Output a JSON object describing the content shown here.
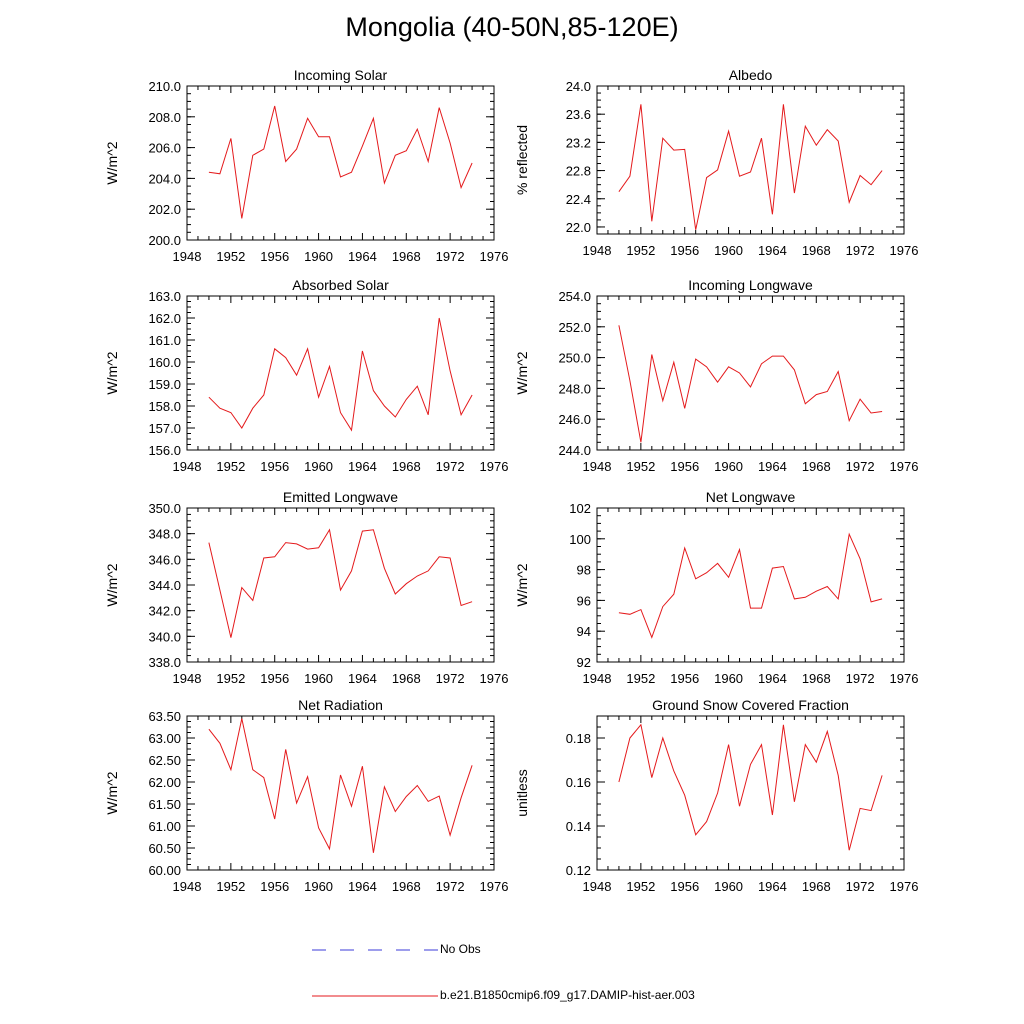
{
  "title": "Mongolia (40-50N,85-120E)",
  "colors": {
    "model_line": "#e41a1c",
    "obs_line": "#3b3bd9",
    "axis": "#000000"
  },
  "legend": {
    "items": [
      {
        "label": "No Obs",
        "style": "dashed",
        "color": "#3b3bd9"
      },
      {
        "label": "b.e21.B1850cmip6.f09_g17.DAMIP-hist-aer.003",
        "style": "solid",
        "color": "#e41a1c"
      }
    ]
  },
  "chart_data": [
    {
      "type": "line",
      "title": "Incoming Solar",
      "xlabel": "",
      "ylabel": "W/m^2",
      "xlim": [
        1948,
        1976
      ],
      "ylim": [
        200.0,
        210.0
      ],
      "xticks": [
        1948,
        1952,
        1956,
        1960,
        1964,
        1968,
        1972,
        1976
      ],
      "yticks": [
        200.0,
        202.0,
        204.0,
        206.0,
        208.0,
        210.0
      ],
      "ytick_decimals": 1,
      "grid": false,
      "series": [
        {
          "x": [
            1950,
            1951,
            1952,
            1953,
            1954,
            1955,
            1956,
            1957,
            1958,
            1959,
            1960,
            1961,
            1962,
            1963,
            1964,
            1965,
            1966,
            1967,
            1968,
            1969,
            1970,
            1971,
            1972,
            1973,
            1974
          ],
          "values": [
            204.4,
            204.3,
            206.6,
            201.4,
            205.5,
            205.9,
            208.7,
            205.1,
            205.9,
            207.9,
            206.7,
            206.7,
            204.1,
            204.4,
            206.1,
            207.9,
            203.7,
            205.5,
            205.8,
            207.2,
            205.1,
            208.6,
            206.3,
            203.4,
            205.0
          ]
        }
      ]
    },
    {
      "type": "line",
      "title": "Albedo",
      "xlabel": "",
      "ylabel": "% reflected",
      "xlim": [
        1948,
        1976
      ],
      "ylim": [
        21.9,
        24.0
      ],
      "xticks": [
        1948,
        1952,
        1956,
        1960,
        1964,
        1968,
        1972,
        1976
      ],
      "yticks": [
        22.0,
        22.4,
        22.8,
        23.2,
        23.6,
        24.0
      ],
      "ytick_decimals": 1,
      "grid": false,
      "series": [
        {
          "x": [
            1950,
            1951,
            1952,
            1953,
            1954,
            1955,
            1956,
            1957,
            1958,
            1959,
            1960,
            1961,
            1962,
            1963,
            1964,
            1965,
            1966,
            1967,
            1968,
            1969,
            1970,
            1971,
            1972,
            1973,
            1974
          ],
          "values": [
            22.5,
            22.72,
            23.74,
            22.08,
            23.26,
            23.09,
            23.1,
            21.96,
            22.7,
            22.81,
            23.36,
            22.72,
            22.78,
            23.26,
            22.18,
            23.74,
            22.48,
            23.43,
            23.16,
            23.38,
            23.22,
            22.35,
            22.73,
            22.6,
            22.8
          ]
        }
      ]
    },
    {
      "type": "line",
      "title": "Absorbed Solar",
      "xlabel": "",
      "ylabel": "W/m^2",
      "xlim": [
        1948,
        1976
      ],
      "ylim": [
        156.0,
        163.0
      ],
      "xticks": [
        1948,
        1952,
        1956,
        1960,
        1964,
        1968,
        1972,
        1976
      ],
      "yticks": [
        156.0,
        157.0,
        158.0,
        159.0,
        160.0,
        161.0,
        162.0,
        163.0
      ],
      "ytick_decimals": 1,
      "grid": false,
      "series": [
        {
          "x": [
            1950,
            1951,
            1952,
            1953,
            1954,
            1955,
            1956,
            1957,
            1958,
            1959,
            1960,
            1961,
            1962,
            1963,
            1964,
            1965,
            1966,
            1967,
            1968,
            1969,
            1970,
            1971,
            1972,
            1973,
            1974
          ],
          "values": [
            158.4,
            157.9,
            157.7,
            157.0,
            157.9,
            158.5,
            160.6,
            160.2,
            159.4,
            160.6,
            158.4,
            159.8,
            157.7,
            156.9,
            160.5,
            158.7,
            158.0,
            157.5,
            158.3,
            158.9,
            157.6,
            162.0,
            159.6,
            157.6,
            158.5
          ]
        }
      ]
    },
    {
      "type": "line",
      "title": "Incoming Longwave",
      "xlabel": "",
      "ylabel": "W/m^2",
      "xlim": [
        1948,
        1976
      ],
      "ylim": [
        244.0,
        254.0
      ],
      "xticks": [
        1948,
        1952,
        1956,
        1960,
        1964,
        1968,
        1972,
        1976
      ],
      "yticks": [
        244.0,
        246.0,
        248.0,
        250.0,
        252.0,
        254.0
      ],
      "ytick_decimals": 1,
      "grid": false,
      "series": [
        {
          "x": [
            1950,
            1951,
            1952,
            1953,
            1954,
            1955,
            1956,
            1957,
            1958,
            1959,
            1960,
            1961,
            1962,
            1963,
            1964,
            1965,
            1966,
            1967,
            1968,
            1969,
            1970,
            1971,
            1972,
            1973,
            1974
          ],
          "values": [
            252.1,
            248.5,
            244.5,
            250.2,
            247.2,
            249.7,
            246.7,
            249.9,
            249.4,
            248.4,
            249.4,
            249.0,
            248.1,
            249.6,
            250.1,
            250.1,
            249.2,
            247.0,
            247.6,
            247.8,
            249.1,
            245.9,
            247.3,
            246.4,
            246.5
          ]
        }
      ]
    },
    {
      "type": "line",
      "title": "Emitted Longwave",
      "xlabel": "",
      "ylabel": "W/m^2",
      "xlim": [
        1948,
        1976
      ],
      "ylim": [
        338.0,
        350.0
      ],
      "xticks": [
        1948,
        1952,
        1956,
        1960,
        1964,
        1968,
        1972,
        1976
      ],
      "yticks": [
        338.0,
        340.0,
        342.0,
        344.0,
        346.0,
        348.0,
        350.0
      ],
      "ytick_decimals": 1,
      "grid": false,
      "series": [
        {
          "x": [
            1950,
            1951,
            1952,
            1953,
            1954,
            1955,
            1956,
            1957,
            1958,
            1959,
            1960,
            1961,
            1962,
            1963,
            1964,
            1965,
            1966,
            1967,
            1968,
            1969,
            1970,
            1971,
            1972,
            1973,
            1974
          ],
          "values": [
            347.3,
            343.6,
            339.9,
            343.8,
            342.8,
            346.1,
            346.2,
            347.3,
            347.2,
            346.8,
            346.9,
            348.3,
            343.6,
            345.1,
            348.2,
            348.3,
            345.3,
            343.3,
            344.1,
            344.7,
            345.1,
            346.2,
            346.1,
            342.4,
            342.7
          ]
        }
      ]
    },
    {
      "type": "line",
      "title": "Net Longwave",
      "xlabel": "",
      "ylabel": "W/m^2",
      "xlim": [
        1948,
        1976
      ],
      "ylim": [
        92,
        102
      ],
      "xticks": [
        1948,
        1952,
        1956,
        1960,
        1964,
        1968,
        1972,
        1976
      ],
      "yticks": [
        92,
        94,
        96,
        98,
        100,
        102
      ],
      "ytick_decimals": 0,
      "grid": false,
      "series": [
        {
          "x": [
            1950,
            1951,
            1952,
            1953,
            1954,
            1955,
            1956,
            1957,
            1958,
            1959,
            1960,
            1961,
            1962,
            1963,
            1964,
            1965,
            1966,
            1967,
            1968,
            1969,
            1970,
            1971,
            1972,
            1973,
            1974
          ],
          "values": [
            95.2,
            95.1,
            95.4,
            93.6,
            95.6,
            96.4,
            99.4,
            97.4,
            97.8,
            98.4,
            97.5,
            99.3,
            95.5,
            95.5,
            98.1,
            98.2,
            96.1,
            96.2,
            96.6,
            96.9,
            96.1,
            100.3,
            98.7,
            95.9,
            96.1
          ]
        }
      ]
    },
    {
      "type": "line",
      "title": "Net Radiation",
      "xlabel": "",
      "ylabel": "W/m^2",
      "xlim": [
        1948,
        1976
      ],
      "ylim": [
        60.0,
        63.5
      ],
      "xticks": [
        1948,
        1952,
        1956,
        1960,
        1964,
        1968,
        1972,
        1976
      ],
      "yticks": [
        60.0,
        60.5,
        61.0,
        61.5,
        62.0,
        62.5,
        63.0,
        63.5
      ],
      "ytick_decimals": 2,
      "grid": false,
      "series": [
        {
          "x": [
            1950,
            1951,
            1952,
            1953,
            1954,
            1955,
            1956,
            1957,
            1958,
            1959,
            1960,
            1961,
            1962,
            1963,
            1964,
            1965,
            1966,
            1967,
            1968,
            1969,
            1970,
            1971,
            1972,
            1973,
            1974
          ],
          "values": [
            63.2,
            62.88,
            62.28,
            63.44,
            62.28,
            62.1,
            61.16,
            62.74,
            61.52,
            62.12,
            60.96,
            60.48,
            62.16,
            61.45,
            62.36,
            60.39,
            61.89,
            61.33,
            61.67,
            61.92,
            61.56,
            61.68,
            60.79,
            61.64,
            62.38
          ]
        }
      ]
    },
    {
      "type": "line",
      "title": "Ground Snow Covered Fraction",
      "xlabel": "",
      "ylabel": "unitless",
      "xlim": [
        1948,
        1976
      ],
      "ylim": [
        0.12,
        0.19
      ],
      "xticks": [
        1948,
        1952,
        1956,
        1960,
        1964,
        1968,
        1972,
        1976
      ],
      "yticks": [
        0.12,
        0.14,
        0.16,
        0.18
      ],
      "ytick_decimals": 2,
      "grid": false,
      "series": [
        {
          "x": [
            1950,
            1951,
            1952,
            1953,
            1954,
            1955,
            1956,
            1957,
            1958,
            1959,
            1960,
            1961,
            1962,
            1963,
            1964,
            1965,
            1966,
            1967,
            1968,
            1969,
            1970,
            1971,
            1972,
            1973,
            1974
          ],
          "values": [
            0.16,
            0.18,
            0.186,
            0.162,
            0.18,
            0.165,
            0.154,
            0.136,
            0.142,
            0.155,
            0.177,
            0.149,
            0.168,
            0.177,
            0.145,
            0.186,
            0.151,
            0.177,
            0.169,
            0.183,
            0.163,
            0.129,
            0.148,
            0.147,
            0.163
          ]
        }
      ]
    }
  ]
}
